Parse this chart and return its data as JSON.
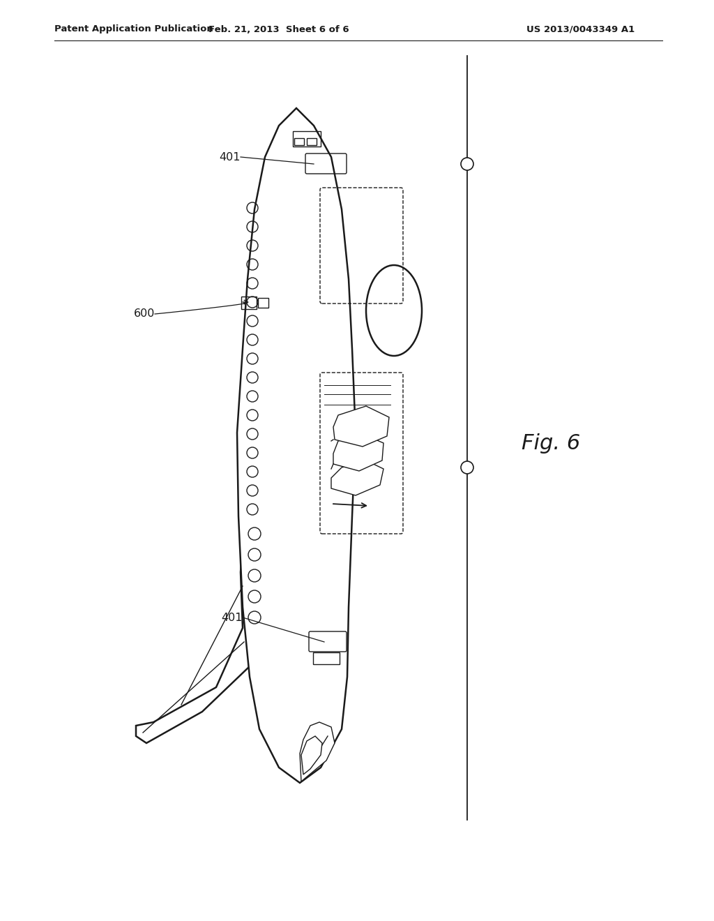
{
  "bg_color": "#ffffff",
  "line_color": "#1a1a1a",
  "header_left": "Patent Application Publication",
  "header_mid": "Feb. 21, 2013  Sheet 6 of 6",
  "header_right": "US 2013/0043349 A1",
  "fig_label": "Fig. 6",
  "label_401_top": "401",
  "label_401_bot": "401",
  "label_600": "600",
  "figsize": [
    10.24,
    13.2
  ],
  "dpi": 100
}
